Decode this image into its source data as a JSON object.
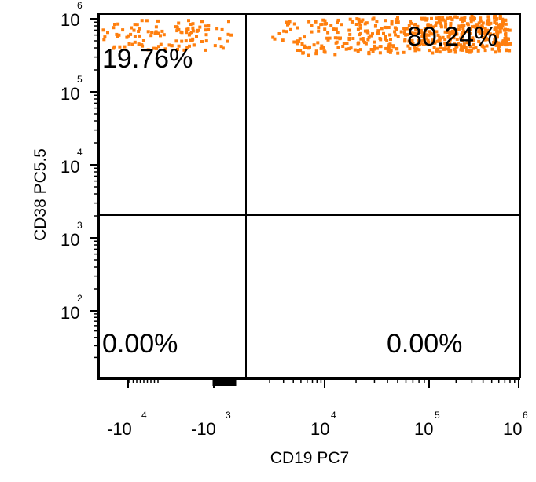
{
  "chart_data": {
    "type": "scatter",
    "title": "",
    "xlabel": "CD19 PC7",
    "ylabel": "CD38 PC5.5",
    "point_color": "#ff7f0e",
    "x_ticks": [
      {
        "base": "-10",
        "exp": "4"
      },
      {
        "base": "-10",
        "exp": "3"
      },
      {
        "base": "10",
        "exp": "4"
      },
      {
        "base": "10",
        "exp": "5"
      },
      {
        "base": "10",
        "exp": "6"
      }
    ],
    "y_ticks": [
      {
        "base": "10",
        "exp": "6"
      },
      {
        "base": "10",
        "exp": "5"
      },
      {
        "base": "10",
        "exp": "4"
      },
      {
        "base": "10",
        "exp": "3"
      },
      {
        "base": "10",
        "exp": "2"
      }
    ],
    "quadrants": {
      "upper_left": "19.76%",
      "upper_right": "80.24%",
      "lower_left": "0.00%",
      "lower_right": "0.00%"
    },
    "gate": {
      "x_threshold": "near -10^3 (just right)",
      "y_threshold": "about 2x10^3"
    },
    "grid": false,
    "legend": "none"
  }
}
